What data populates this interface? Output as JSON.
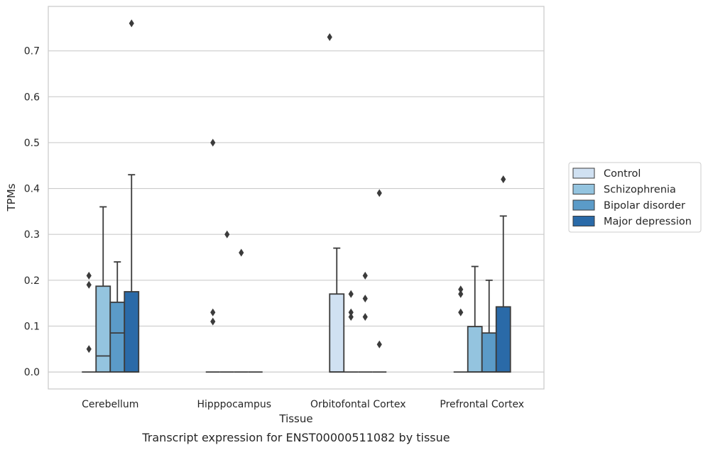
{
  "chart_data": {
    "type": "box",
    "title": "",
    "caption": "Transcript expression for ENST00000511082 by tissue",
    "xlabel": "Tissue",
    "ylabel": "TPMs",
    "ylim": [
      -0.037,
      0.797
    ],
    "yticks": [
      0.0,
      0.1,
      0.2,
      0.3,
      0.4,
      0.5,
      0.6,
      0.7
    ],
    "ytick_labels": [
      "0.0",
      "0.1",
      "0.2",
      "0.3",
      "0.4",
      "0.5",
      "0.6",
      "0.7"
    ],
    "grid": "horizontal",
    "legend_position": "right",
    "categories": [
      "Cerebellum",
      "Hipppocampus",
      "Orbitofontal Cortex",
      "Prefrontal Cortex"
    ],
    "series": [
      {
        "name": "Control",
        "color": "#d0e1f2",
        "boxes": [
          {
            "q1": 0.0,
            "median": 0.0,
            "q3": 0.0,
            "whisker_low": 0.0,
            "whisker_high": 0.0,
            "outliers": [
              0.05,
              0.19,
              0.21
            ]
          },
          {
            "q1": 0.0,
            "median": 0.0,
            "q3": 0.0,
            "whisker_low": 0.0,
            "whisker_high": 0.0,
            "outliers": [
              0.11,
              0.13,
              0.5
            ]
          },
          {
            "q1": 0.0,
            "median": 0.0,
            "q3": 0.17,
            "whisker_low": 0.0,
            "whisker_high": 0.27,
            "outliers": []
          },
          {
            "q1": 0.0,
            "median": 0.0,
            "q3": 0.0,
            "whisker_low": 0.0,
            "whisker_high": 0.0,
            "outliers": [
              0.13,
              0.17,
              0.18
            ]
          }
        ]
      },
      {
        "name": "Schizophrenia",
        "color": "#94c4df",
        "boxes": [
          {
            "q1": 0.0,
            "median": 0.035,
            "q3": 0.187,
            "whisker_low": 0.0,
            "whisker_high": 0.36,
            "outliers": []
          },
          {
            "q1": 0.0,
            "median": 0.0,
            "q3": 0.0,
            "whisker_low": 0.0,
            "whisker_high": 0.0,
            "outliers": [
              0.3
            ]
          },
          {
            "q1": 0.0,
            "median": 0.0,
            "q3": 0.0,
            "whisker_low": 0.0,
            "whisker_high": 0.0,
            "outliers": [
              0.12,
              0.13,
              0.17
            ]
          },
          {
            "q1": 0.0,
            "median": 0.0,
            "q3": 0.099,
            "whisker_low": 0.0,
            "whisker_high": 0.23,
            "outliers": []
          }
        ]
      },
      {
        "name": "Bipolar disorder",
        "color": "#5b9bc8",
        "boxes": [
          {
            "q1": 0.0,
            "median": 0.085,
            "q3": 0.152,
            "whisker_low": 0.0,
            "whisker_high": 0.24,
            "outliers": []
          },
          {
            "q1": 0.0,
            "median": 0.0,
            "q3": 0.0,
            "whisker_low": 0.0,
            "whisker_high": 0.0,
            "outliers": [
              0.26
            ]
          },
          {
            "q1": 0.0,
            "median": 0.0,
            "q3": 0.0,
            "whisker_low": 0.0,
            "whisker_high": 0.0,
            "outliers": [
              0.12,
              0.16,
              0.21
            ]
          },
          {
            "q1": 0.0,
            "median": 0.0,
            "q3": 0.085,
            "whisker_low": 0.0,
            "whisker_high": 0.2,
            "outliers": []
          }
        ]
      },
      {
        "name": "Major depression",
        "color": "#2a6aa8",
        "boxes": [
          {
            "q1": 0.0,
            "median": 0.0,
            "q3": 0.175,
            "whisker_low": 0.0,
            "whisker_high": 0.43,
            "outliers": [
              0.76
            ]
          },
          {
            "q1": 0.0,
            "median": 0.0,
            "q3": 0.0,
            "whisker_low": 0.0,
            "whisker_high": 0.0,
            "outliers": []
          },
          {
            "q1": 0.0,
            "median": 0.0,
            "q3": 0.0,
            "whisker_low": 0.0,
            "whisker_high": 0.0,
            "outliers": [
              0.06,
              0.39
            ]
          },
          {
            "q1": 0.0,
            "median": 0.0,
            "q3": 0.142,
            "whisker_low": 0.0,
            "whisker_high": 0.34,
            "outliers": [
              0.42
            ]
          }
        ]
      }
    ],
    "extra_outliers": [
      {
        "category": 2,
        "x_offset": -0.5,
        "value": 0.73
      }
    ]
  }
}
